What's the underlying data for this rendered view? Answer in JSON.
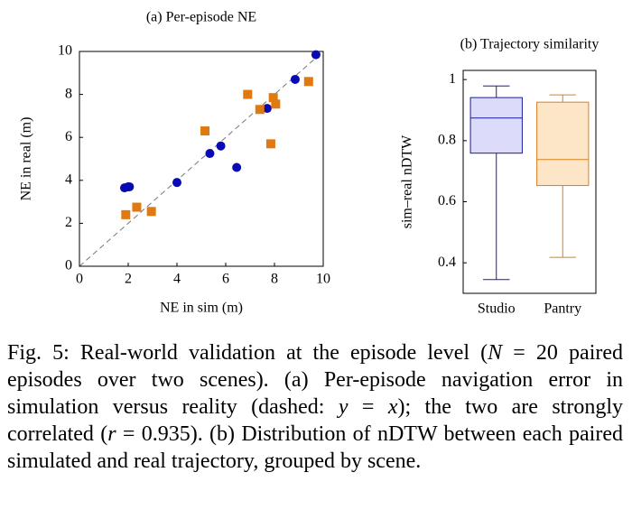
{
  "chart_data": [
    {
      "type": "scatter",
      "title": "(a) Per-episode NE",
      "xlabel": "NE in sim (m)",
      "ylabel": "NE in real (m)",
      "xlim": [
        0,
        10
      ],
      "ylim": [
        0,
        10
      ],
      "xticks": [
        0,
        2,
        4,
        6,
        8,
        10
      ],
      "yticks": [
        0,
        2,
        4,
        6,
        8,
        10
      ],
      "series": [
        {
          "color": "#0a0ab4",
          "marker": "circle",
          "x": [
            1.85,
            2.0,
            2.05,
            4.0,
            5.35,
            5.8,
            6.45,
            7.7,
            8.85,
            9.7
          ],
          "y": [
            3.65,
            3.7,
            3.7,
            3.9,
            5.25,
            5.6,
            4.6,
            7.35,
            8.7,
            9.85
          ]
        },
        {
          "color": "#e07a10",
          "marker": "square",
          "x": [
            1.9,
            2.35,
            2.95,
            5.15,
            6.9,
            7.4,
            7.85,
            7.95,
            8.05,
            9.4
          ],
          "y": [
            2.4,
            2.75,
            2.55,
            6.3,
            8.0,
            7.3,
            5.7,
            7.85,
            7.55,
            8.6
          ]
        }
      ]
    },
    {
      "type": "box",
      "title": "(b) Trajectory similarity",
      "ylabel": "sim–real nDTW",
      "ylim": [
        0.3,
        1.03
      ],
      "yticks": [
        0.4,
        0.6,
        0.8,
        1
      ],
      "categories": [
        "Studio",
        "Pantry"
      ],
      "boxes": [
        {
          "low": 0.345,
          "q1": 0.759,
          "median": 0.874,
          "q3": 0.941,
          "high": 0.979,
          "color": "#1a1aa0",
          "fill": "#dcdcfa"
        },
        {
          "low": 0.418,
          "q1": 0.653,
          "median": 0.738,
          "q3": 0.926,
          "high": 0.95,
          "color": "#d98020",
          "fill": "#fde5c8"
        }
      ]
    }
  ],
  "caption": [
    "Fig. 5: Real-world validation at the episode level (",
    "N",
    " = 20 paired episodes over two scenes). (a) Per-episode navigation error in simulation versus reality (dashed: ",
    "y",
    " = ",
    "x",
    "); the two are strongly correlated (",
    "r",
    " = 0.935). (b) Distribution of nDTW between each paired simulated and real trajectory, grouped by scene."
  ]
}
